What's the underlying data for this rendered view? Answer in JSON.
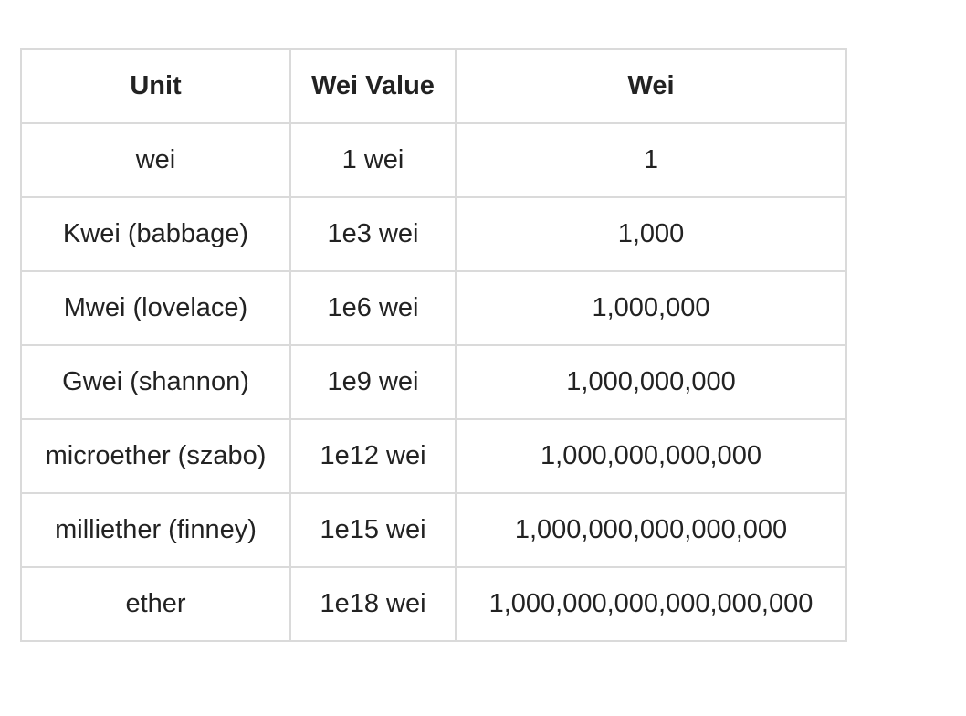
{
  "table": {
    "headers": [
      "Unit",
      "Wei Value",
      "Wei"
    ],
    "rows": [
      [
        "wei",
        "1 wei",
        "1"
      ],
      [
        "Kwei (babbage)",
        "1e3 wei",
        "1,000"
      ],
      [
        "Mwei (lovelace)",
        "1e6 wei",
        "1,000,000"
      ],
      [
        "Gwei (shannon)",
        "1e9 wei",
        "1,000,000,000"
      ],
      [
        "microether (szabo)",
        "1e12 wei",
        "1,000,000,000,000"
      ],
      [
        "milliether (finney)",
        "1e15 wei",
        "1,000,000,000,000,000"
      ],
      [
        "ether",
        "1e18 wei",
        "1,000,000,000,000,000,000"
      ]
    ]
  },
  "colors": {
    "border": "#dadada",
    "text": "#222222",
    "background": "#ffffff"
  }
}
